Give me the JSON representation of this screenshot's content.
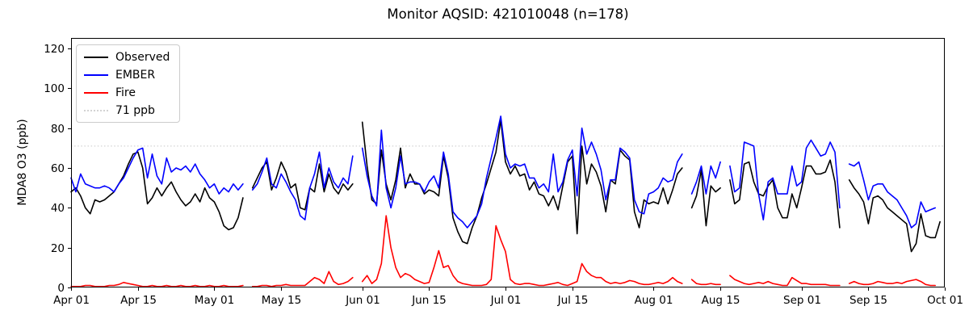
{
  "figure": {
    "title": "Monitor AQSID: 421010048 (n=178)",
    "ylabel": "MDA8 O3 (ppb)"
  },
  "legend": {
    "items": [
      {
        "label": "Observed",
        "color": "#000000",
        "dash": "solid"
      },
      {
        "label": "EMBER",
        "color": "#0000ff",
        "dash": "solid"
      },
      {
        "label": "Fire",
        "color": "#ff0000",
        "dash": "solid"
      },
      {
        "label": "71 ppb",
        "color": "#d3d3d3",
        "dash": "dotted"
      }
    ]
  },
  "chart_data": {
    "type": "line",
    "title": "Monitor AQSID: 421010048 (n=178)",
    "xlabel": "",
    "ylabel": "MDA8 O3 (ppb)",
    "ylim": [
      0,
      125.3
    ],
    "yticks": [
      0,
      20,
      40,
      60,
      80,
      100,
      120
    ],
    "x_span_days": 183,
    "x_start": "Apr 01",
    "x_end": "Oct 01",
    "grid": false,
    "legend_position": "upper left",
    "xticks": [
      {
        "label": "Apr 01",
        "day": 0
      },
      {
        "label": "Apr 15",
        "day": 14
      },
      {
        "label": "May 01",
        "day": 30
      },
      {
        "label": "May 15",
        "day": 44
      },
      {
        "label": "Jun 01",
        "day": 61
      },
      {
        "label": "Jun 15",
        "day": 75
      },
      {
        "label": "Jul 01",
        "day": 91
      },
      {
        "label": "Jul 15",
        "day": 105
      },
      {
        "label": "Aug 01",
        "day": 122
      },
      {
        "label": "Aug 15",
        "day": 136
      },
      {
        "label": "Sep 01",
        "day": 153
      },
      {
        "label": "Sep 15",
        "day": 167
      },
      {
        "label": "Oct 01",
        "day": 183
      }
    ],
    "threshold": {
      "value": 71,
      "label": "71 ppb",
      "color": "#d3d3d3",
      "style": "dotted"
    },
    "series": [
      {
        "name": "Observed",
        "color": "#000000",
        "values": [
          48,
          50,
          46,
          40,
          37,
          44,
          43,
          44,
          46,
          48,
          52,
          56,
          62,
          67,
          68,
          60,
          42,
          45,
          50,
          46,
          50,
          53,
          48,
          44,
          41,
          43,
          47,
          43,
          50,
          45,
          43,
          38,
          31,
          29,
          30,
          35,
          45,
          null,
          50,
          55,
          60,
          63,
          49,
          55,
          63,
          58,
          50,
          52,
          40,
          39,
          50,
          48,
          62,
          48,
          57,
          50,
          47,
          52,
          49,
          52,
          null,
          83,
          61,
          44,
          42,
          69,
          52,
          44,
          54,
          70,
          50,
          57,
          52,
          52,
          47,
          49,
          48,
          46,
          66,
          55,
          35,
          28,
          23,
          22,
          30,
          36,
          45,
          52,
          60,
          68,
          84,
          63,
          57,
          61,
          56,
          57,
          49,
          53,
          47,
          46,
          41,
          46,
          39,
          51,
          63,
          66,
          27,
          71,
          52,
          62,
          58,
          51,
          38,
          54,
          52,
          69,
          66,
          64,
          38,
          30,
          44,
          42,
          43,
          42,
          50,
          42,
          49,
          57,
          60,
          null,
          40,
          46,
          59,
          31,
          51,
          48,
          50,
          null,
          54,
          42,
          44,
          62,
          63,
          53,
          47,
          46,
          51,
          54,
          40,
          35,
          35,
          47,
          40,
          50,
          61,
          61,
          57,
          57,
          58,
          64,
          53,
          30,
          null,
          54,
          50,
          47,
          43,
          32,
          45,
          46,
          44,
          40,
          38,
          36,
          34,
          32,
          18,
          22,
          37,
          26,
          25,
          25,
          33
        ]
      },
      {
        "name": "EMBER",
        "color": "#0000ff",
        "values": [
          55,
          48,
          57,
          52,
          51,
          50,
          50,
          51,
          50,
          48,
          52,
          55,
          60,
          65,
          69,
          70,
          55,
          67,
          56,
          52,
          65,
          58,
          60,
          59,
          61,
          58,
          62,
          57,
          54,
          50,
          52,
          47,
          50,
          48,
          52,
          49,
          52,
          null,
          49,
          52,
          58,
          65,
          52,
          50,
          57,
          53,
          48,
          44,
          36,
          34,
          50,
          57,
          68,
          50,
          60,
          53,
          50,
          55,
          52,
          66,
          null,
          70,
          56,
          46,
          41,
          79,
          50,
          40,
          50,
          66,
          52,
          53,
          53,
          52,
          48,
          53,
          56,
          50,
          68,
          57,
          38,
          35,
          33,
          30,
          33,
          36,
          42,
          55,
          65,
          75,
          86,
          67,
          60,
          62,
          61,
          62,
          55,
          55,
          50,
          52,
          48,
          67,
          48,
          53,
          64,
          69,
          46,
          80,
          67,
          73,
          67,
          59,
          44,
          54,
          54,
          70,
          68,
          65,
          44,
          38,
          37,
          47,
          48,
          50,
          55,
          53,
          54,
          63,
          67,
          null,
          47,
          53,
          61,
          47,
          61,
          55,
          63,
          null,
          61,
          48,
          50,
          73,
          72,
          71,
          47,
          34,
          53,
          55,
          47,
          47,
          47,
          61,
          51,
          53,
          70,
          74,
          70,
          66,
          67,
          73,
          68,
          40,
          null,
          62,
          61,
          63,
          54,
          44,
          51,
          52,
          52,
          48,
          46,
          44,
          40,
          36,
          30,
          32,
          43,
          38,
          39,
          40,
          null
        ]
      },
      {
        "name": "Fire",
        "color": "#ff0000",
        "values": [
          0.5,
          0.5,
          0.5,
          1,
          1,
          0.5,
          0.5,
          0.5,
          1,
          1,
          1.5,
          2.5,
          2,
          1.5,
          1,
          0.5,
          0.5,
          1,
          0.5,
          0.5,
          1,
          0.5,
          0.5,
          1,
          0.5,
          0.5,
          1,
          0.5,
          0.5,
          1,
          0.5,
          0.5,
          1,
          0.5,
          0.5,
          0.5,
          1,
          null,
          0.5,
          0.5,
          1,
          1,
          0.5,
          1,
          1,
          1.5,
          1,
          1,
          1,
          1,
          3,
          5,
          4,
          2,
          8,
          3,
          1.5,
          2,
          3,
          5,
          null,
          3,
          6,
          2,
          4,
          12,
          36,
          20,
          10,
          5,
          7,
          6,
          4,
          3,
          2,
          2.5,
          10,
          18.5,
          10,
          11,
          6,
          3,
          2,
          1.5,
          1,
          1,
          1,
          1.5,
          4,
          31,
          24,
          18,
          4,
          2,
          1.5,
          2,
          2,
          1.5,
          1,
          1,
          1.5,
          2,
          2.5,
          1.5,
          1,
          2,
          3,
          12,
          8,
          6,
          5,
          5,
          3,
          2,
          2.5,
          2,
          2.5,
          3.5,
          3,
          2,
          1.5,
          1.5,
          2,
          2.5,
          2,
          3,
          5,
          3,
          2,
          null,
          4,
          2,
          1.5,
          1.5,
          2,
          1.5,
          1.5,
          null,
          6,
          4,
          3,
          2,
          1.5,
          2,
          2.5,
          2,
          3,
          2,
          1.5,
          1,
          1,
          5,
          3.5,
          2,
          2,
          1.5,
          1.5,
          1.5,
          1.5,
          1,
          1,
          1,
          null,
          2,
          3,
          2,
          1.5,
          1.5,
          2,
          3,
          2.5,
          2,
          2,
          2.5,
          2,
          3,
          3.5,
          4,
          3,
          1.5,
          1,
          1,
          null
        ]
      }
    ]
  }
}
